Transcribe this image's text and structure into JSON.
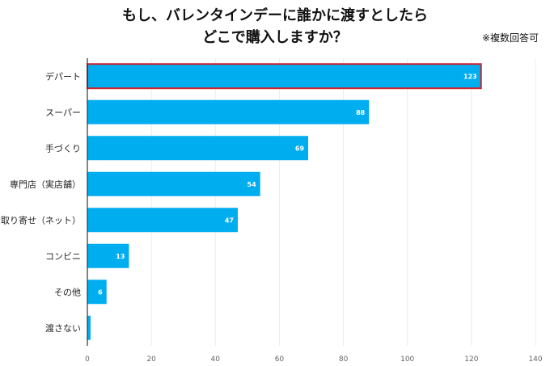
{
  "chart_data": {
    "type": "bar",
    "orientation": "horizontal",
    "title": [
      "もし、バレンタインデーに誰かに渡すとしたら",
      "どこで購入しますか？"
    ],
    "note": "※複数回答可",
    "categories": [
      "デパート",
      "スーパー",
      "手づくり",
      "専門店（実店舗）",
      "お取り寄せ（ネット）",
      "コンビニ",
      "その他",
      "渡さない"
    ],
    "values": [
      123,
      88,
      69,
      54,
      47,
      13,
      6,
      1
    ],
    "data_labels": [
      "123",
      "88",
      "69",
      "54",
      "47",
      "13",
      "6",
      ""
    ],
    "highlighted": "デパート",
    "xlim": [
      0,
      140
    ],
    "xticks": [
      "0",
      "20",
      "40",
      "60",
      "80",
      "100",
      "120",
      "140"
    ],
    "grid": true,
    "bar_color": "#00aeef",
    "highlight_color": "#d0202a"
  }
}
